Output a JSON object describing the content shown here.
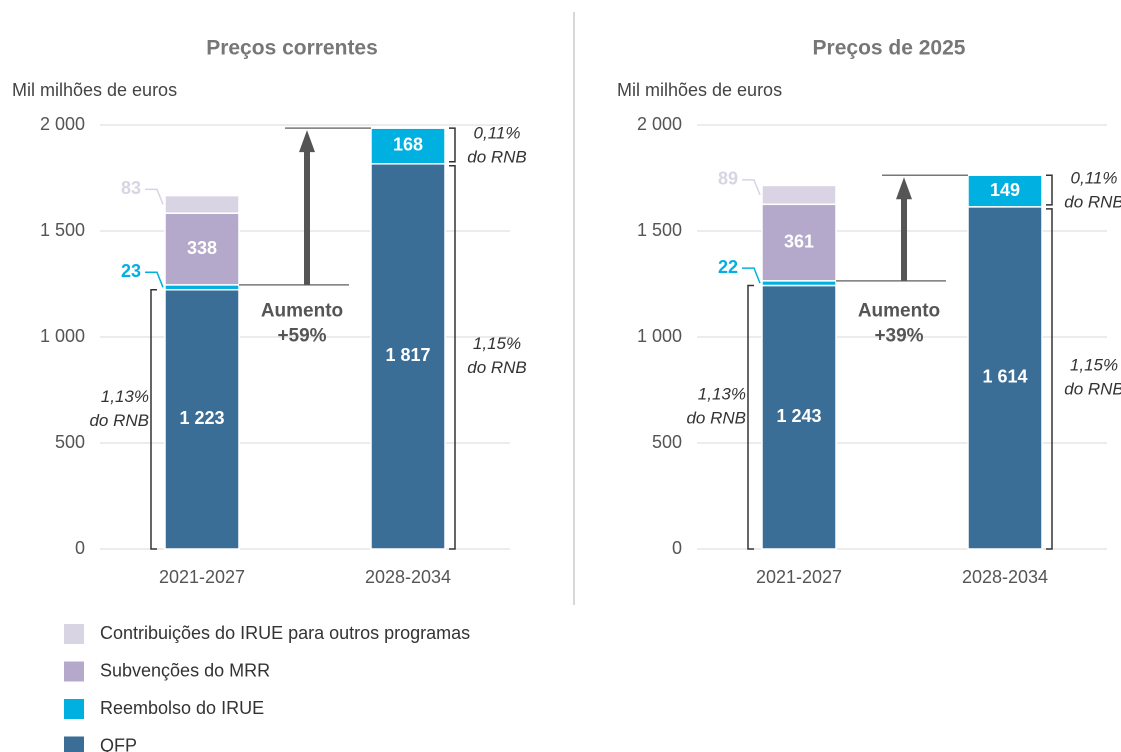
{
  "chart_data": [
    {
      "type": "stacked_bar",
      "title": "Preços correntes",
      "ylabel": "Mil milhões de euros",
      "categories": [
        "2021-2027",
        "2028-2034"
      ],
      "series": [
        {
          "name": "QFP",
          "color": "#3b6e97",
          "label_color": "#ffffff",
          "values": [
            1223,
            1817
          ],
          "value_labels": [
            "1 223",
            "1 817"
          ]
        },
        {
          "name": "Reembolso do IRUE",
          "color": "#00b0e0",
          "label_color": "#ffffff",
          "values": [
            23,
            168
          ]
        },
        {
          "name": "Subvenções do MRR",
          "color": "#b4a9ca",
          "label_color": "#ffffff",
          "values": [
            338,
            null
          ]
        },
        {
          "name": "Contribuições do IRUE para outros programas",
          "color": "#d9d4e4",
          "label_color": "#8a8a8a",
          "values": [
            83,
            null
          ]
        }
      ],
      "ylim": [
        0,
        2000
      ],
      "yticks": [
        0,
        500,
        {
          "value": 1000,
          "label": "1 000"
        },
        {
          "value": 1500,
          "label": "1 500"
        },
        {
          "value": 2000,
          "label": "2 000"
        }
      ],
      "grid": true,
      "annotations": {
        "increase": [
          "Aumento",
          "+59%"
        ],
        "gni_first": [
          "1,13%",
          "do RNB"
        ],
        "gni_second_qfp": [
          "1,15%",
          "do RNB"
        ],
        "gni_second_irue": [
          "0,11%",
          "do RNB"
        ]
      }
    },
    {
      "type": "stacked_bar",
      "title": "Preços de 2025",
      "ylabel": "Mil milhões de euros",
      "categories": [
        "2021-2027",
        "2028-2034"
      ],
      "series": [
        {
          "name": "QFP",
          "color": "#3b6e97",
          "label_color": "#ffffff",
          "values": [
            1243,
            1614
          ],
          "value_labels": [
            "1 243",
            "1 614"
          ]
        },
        {
          "name": "Reembolso do IRUE",
          "color": "#00b0e0",
          "label_color": "#ffffff",
          "values": [
            22,
            149
          ]
        },
        {
          "name": "Subvenções do MRR",
          "color": "#b4a9ca",
          "label_color": "#ffffff",
          "values": [
            361,
            null
          ]
        },
        {
          "name": "Contribuições do IRUE para outros programas",
          "color": "#d9d4e4",
          "label_color": "#8a8a8a",
          "values": [
            89,
            null
          ]
        }
      ],
      "ylim": [
        0,
        2000
      ],
      "yticks": [
        0,
        500,
        {
          "value": 1000,
          "label": "1 000"
        },
        {
          "value": 1500,
          "label": "1 500"
        },
        {
          "value": 2000,
          "label": "2 000"
        }
      ],
      "grid": true,
      "annotations": {
        "increase": [
          "Aumento",
          "+39%"
        ],
        "gni_first": [
          "1,13%",
          "do RNB"
        ],
        "gni_second_qfp": [
          "1,15%",
          "do RNB"
        ],
        "gni_second_irue": [
          "0,11%",
          "do RNB"
        ]
      }
    }
  ]
}
